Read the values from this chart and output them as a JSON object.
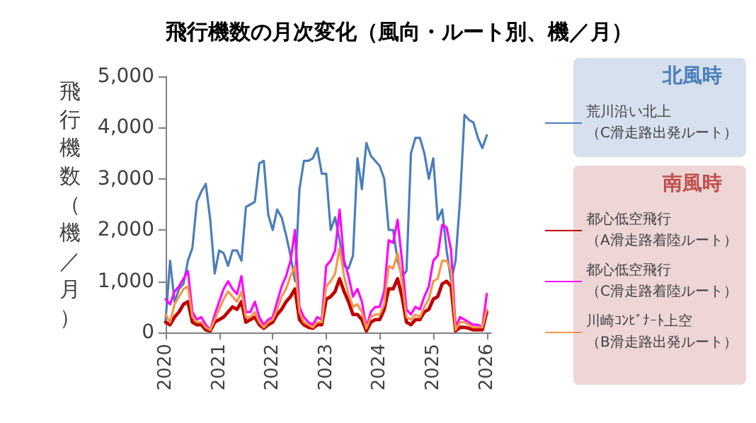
{
  "chart_data": {
    "type": "line",
    "title": "飛行機数の月次変化（風向・ルート別、機／月）",
    "ylabel": "飛行機数（機／月）",
    "annotations": [
      "北風時",
      "南風時"
    ],
    "x": [
      "2020-01",
      "2020-02",
      "2020-03",
      "2020-04",
      "2020-05",
      "2020-06",
      "2020-07",
      "2020-08",
      "2020-09",
      "2020-10",
      "2020-11",
      "2020-12",
      "2021-01",
      "2021-02",
      "2021-03",
      "2021-04",
      "2021-05",
      "2021-06",
      "2021-07",
      "2021-08",
      "2021-09",
      "2021-10",
      "2021-11",
      "2021-12",
      "2022-01",
      "2022-02",
      "2022-03",
      "2022-04",
      "2022-05",
      "2022-06",
      "2022-07",
      "2022-08",
      "2022-09",
      "2022-10",
      "2022-11",
      "2022-12",
      "2023-01",
      "2023-02",
      "2023-03",
      "2023-04",
      "2023-05",
      "2023-06",
      "2023-07",
      "2023-08",
      "2023-09",
      "2023-10",
      "2023-11",
      "2023-12",
      "2024-01",
      "2024-02",
      "2024-03",
      "2024-04",
      "2024-05",
      "2024-06",
      "2024-07",
      "2024-08",
      "2024-09",
      "2024-10",
      "2024-11",
      "2024-12",
      "2025-01",
      "2025-02",
      "2025-03",
      "2025-04",
      "2025-05",
      "2025-06",
      "2025-07",
      "2025-08",
      "2025-09",
      "2025-10",
      "2025-11",
      "2025-12",
      "2026-01"
    ],
    "series": [
      {
        "name": "荒川沿い北上（C滑走路出発ルート）",
        "color": "#4a7ebb",
        "values": [
          250,
          1400,
          600,
          850,
          950,
          1400,
          1650,
          2550,
          2750,
          2900,
          2200,
          1150,
          1600,
          1550,
          1300,
          1600,
          1600,
          1400,
          2450,
          2500,
          2550,
          3300,
          3350,
          2300,
          2000,
          2400,
          2250,
          1900,
          1500,
          1000,
          2800,
          3350,
          3350,
          3400,
          3600,
          3100,
          3100,
          2000,
          2250,
          1800,
          1300,
          1250,
          1500,
          3400,
          2800,
          3700,
          3450,
          3350,
          3250,
          3000,
          2000,
          2000,
          1400,
          1100,
          1200,
          3500,
          3800,
          3800,
          3500,
          3000,
          3400,
          2200,
          2400,
          1600,
          1000,
          1400,
          2600,
          4250,
          4150,
          4100,
          3800,
          3600,
          3850
        ]
      },
      {
        "name": "都心低空飛行（A滑走路着陸ルート）",
        "color": "#c00000",
        "values": [
          200,
          150,
          300,
          400,
          550,
          600,
          200,
          150,
          150,
          50,
          30,
          200,
          250,
          300,
          400,
          500,
          450,
          600,
          200,
          250,
          300,
          150,
          80,
          150,
          200,
          350,
          450,
          600,
          700,
          850,
          250,
          150,
          100,
          80,
          150,
          150,
          650,
          700,
          800,
          1050,
          800,
          600,
          350,
          350,
          250,
          30,
          200,
          250,
          250,
          450,
          850,
          850,
          1050,
          700,
          200,
          150,
          250,
          250,
          400,
          450,
          650,
          700,
          950,
          1000,
          900,
          30,
          100,
          100,
          80,
          50,
          50,
          50,
          400
        ]
      },
      {
        "name": "都心低空飛行（C滑走路着陸ルート）",
        "color": "#ff00ff",
        "values": [
          650,
          550,
          800,
          900,
          1050,
          1200,
          400,
          250,
          300,
          150,
          50,
          350,
          600,
          850,
          1000,
          850,
          750,
          1100,
          400,
          400,
          600,
          300,
          150,
          250,
          300,
          600,
          900,
          1100,
          1400,
          2000,
          500,
          300,
          200,
          150,
          300,
          250,
          1300,
          1400,
          1600,
          2400,
          1400,
          1100,
          700,
          850,
          600,
          100,
          400,
          500,
          500,
          800,
          1800,
          1750,
          2200,
          1400,
          450,
          350,
          500,
          450,
          700,
          900,
          1400,
          1500,
          2100,
          2050,
          1600,
          100,
          300,
          250,
          200,
          150,
          150,
          100,
          750
        ]
      },
      {
        "name": "川崎ｺﾝﾋﾞﾅｰﾄ上空（B滑走路出発ルート）",
        "color": "#f79646",
        "values": [
          350,
          200,
          550,
          700,
          850,
          900,
          300,
          200,
          200,
          100,
          50,
          250,
          450,
          650,
          800,
          700,
          600,
          800,
          300,
          300,
          400,
          200,
          100,
          200,
          250,
          450,
          700,
          850,
          1100,
          1300,
          400,
          200,
          150,
          100,
          200,
          200,
          900,
          1000,
          1150,
          1650,
          1100,
          750,
          500,
          550,
          400,
          80,
          300,
          350,
          350,
          550,
          1300,
          1250,
          1550,
          1000,
          300,
          250,
          350,
          300,
          500,
          650,
          1000,
          1050,
          1400,
          1400,
          1200,
          50,
          200,
          200,
          150,
          100,
          100,
          100,
          450
        ]
      }
    ],
    "xlim": [
      "2020-01",
      "2026-02"
    ],
    "xticks": [
      "2020",
      "2021",
      "2022",
      "2023",
      "2024",
      "2025",
      "2026"
    ],
    "ylim": [
      0,
      5000
    ],
    "yticks": [
      0,
      {
        "value": 1000,
        "label": "1,000"
      },
      {
        "value": 2000,
        "label": "2,000"
      },
      {
        "value": 3000,
        "label": "3,000"
      },
      {
        "value": 4000,
        "label": "4,000"
      },
      {
        "value": 5000,
        "label": "5,000"
      }
    ],
    "grid": false,
    "legend": "right",
    "line_style": "solid",
    "marker": "none"
  }
}
